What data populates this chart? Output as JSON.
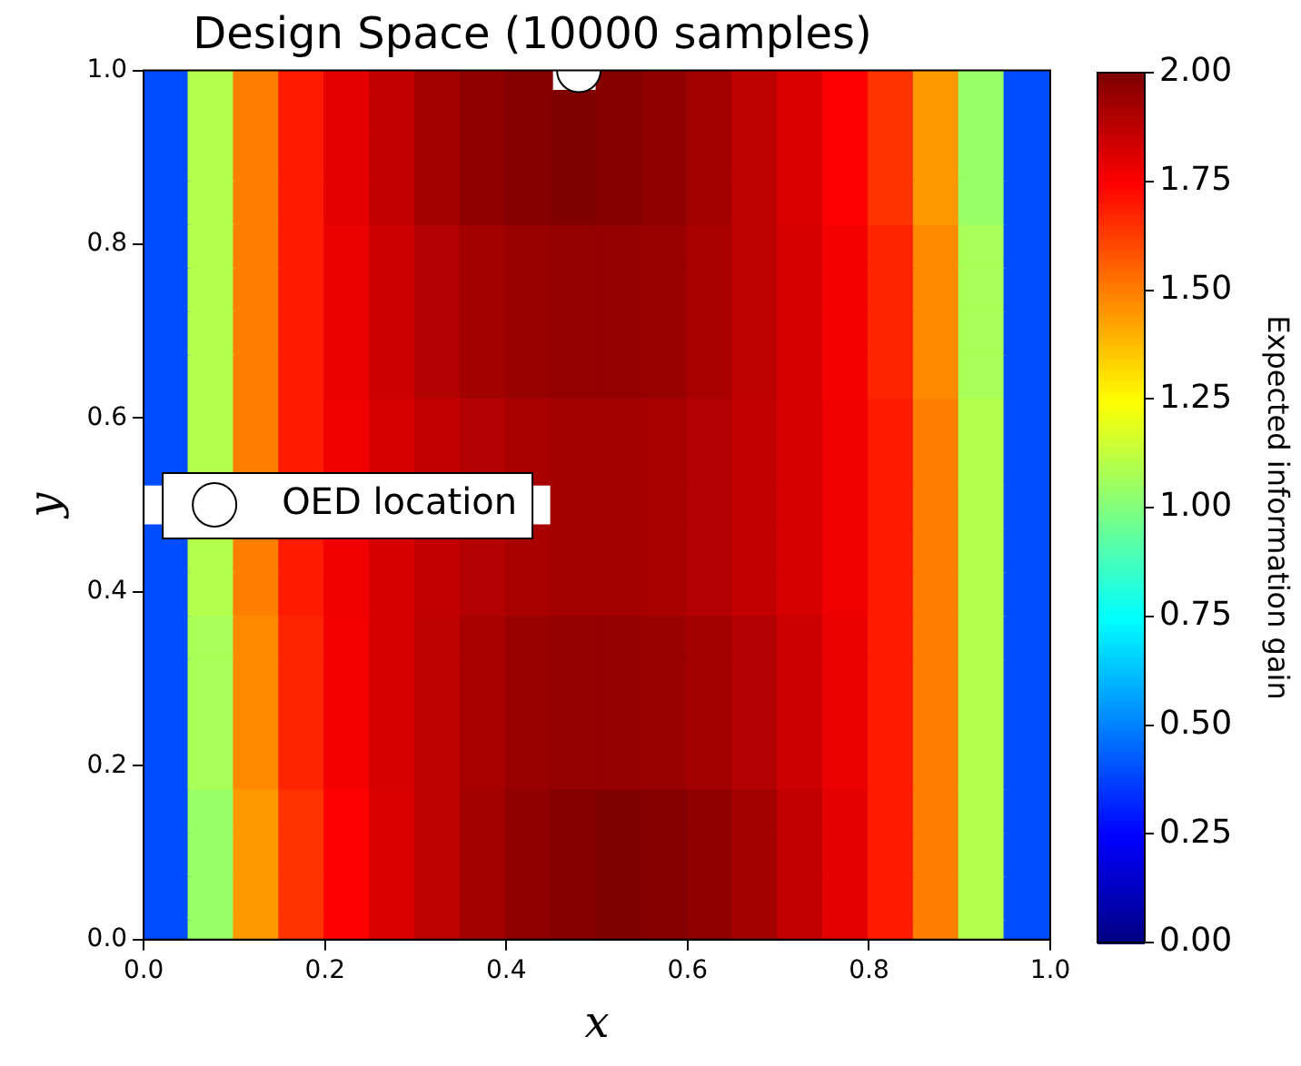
{
  "chart_data": {
    "type": "scatter",
    "title": "Design Space (10000 samples)",
    "xlabel": "x",
    "ylabel": "y",
    "clabel": "Expected information gain",
    "marker": "square",
    "clim": [
      0,
      2
    ],
    "cticks": [
      {
        "value": 0,
        "label": "0.00"
      },
      {
        "value": 0.25,
        "label": "0.25"
      },
      {
        "value": 0.5,
        "label": "0.50"
      },
      {
        "value": 0.75,
        "label": "0.75"
      },
      {
        "value": 1,
        "label": "1.00"
      },
      {
        "value": 1.25,
        "label": "1.25"
      },
      {
        "value": 1.5,
        "label": "1.50"
      },
      {
        "value": 1.75,
        "label": "1.75"
      },
      {
        "value": 2,
        "label": "2.00"
      }
    ],
    "xlim": [
      0,
      1
    ],
    "ylim": [
      0,
      1
    ],
    "xticks": [
      {
        "value": 0,
        "label": "0.0"
      },
      {
        "value": 0.2,
        "label": "0.2"
      },
      {
        "value": 0.4,
        "label": "0.4"
      },
      {
        "value": 0.6,
        "label": "0.6"
      },
      {
        "value": 0.8,
        "label": "0.8"
      },
      {
        "value": 1,
        "label": "1.0"
      }
    ],
    "yticks": [
      {
        "value": 0,
        "label": "0.0"
      },
      {
        "value": 0.2,
        "label": "0.2"
      },
      {
        "value": 0.4,
        "label": "0.4"
      },
      {
        "value": 0.6,
        "label": "0.6"
      },
      {
        "value": 0.8,
        "label": "0.8"
      },
      {
        "value": 1,
        "label": "1.0"
      }
    ],
    "series": [
      {
        "x": [
          0.025,
          0.075,
          0.125,
          0.175,
          0.225,
          0.275,
          0.325,
          0.375,
          0.425,
          0.525,
          0.575,
          0.625,
          0.675,
          0.725,
          0.775,
          0.825,
          0.875,
          0.925,
          0.975
        ],
        "values": [
          1,
          1,
          1,
          1,
          1,
          1,
          1,
          1,
          1,
          1,
          1,
          1,
          1,
          1,
          1,
          1,
          1,
          1,
          1
        ],
        "cvalues": [
          0.4,
          1.1,
          1.5,
          1.7,
          1.8,
          1.87,
          1.93,
          1.97,
          1.99,
          1.99,
          1.97,
          1.93,
          1.88,
          1.82,
          1.75,
          1.65,
          1.45,
          1.05,
          0.4
        ],
        "colors": [
          "#004dff",
          "#b3ff4d",
          "#ff8000",
          "#ff1a00",
          "#e60000",
          "#c20000",
          "#a30000",
          "#8f0000",
          "#850000",
          "#850000",
          "#8f0000",
          "#a30000",
          "#bd0000",
          "#db0000",
          "#ff0000",
          "#ff3300",
          "#ff9900",
          "#99ff66",
          "#004dff"
        ]
      },
      {
        "x": [
          0.025,
          0.075,
          0.125,
          0.175,
          0.225,
          0.275,
          0.325,
          0.375,
          0.425,
          0.475,
          0.525,
          0.575,
          0.625,
          0.675,
          0.725,
          0.775,
          0.825,
          0.875,
          0.925,
          0.975
        ],
        "values": [
          0.95,
          0.95,
          0.95,
          0.95,
          0.95,
          0.95,
          0.95,
          0.95,
          0.95,
          0.95,
          0.95,
          0.95,
          0.95,
          0.95,
          0.95,
          0.95,
          0.95,
          0.95,
          0.95,
          0.95
        ],
        "cvalues": [
          0.4,
          1.1,
          1.5,
          1.7,
          1.8,
          1.87,
          1.93,
          1.97,
          1.99,
          2.0,
          1.99,
          1.97,
          1.93,
          1.88,
          1.82,
          1.75,
          1.65,
          1.45,
          1.05,
          0.4
        ],
        "colors": [
          "#004dff",
          "#b3ff4d",
          "#ff8000",
          "#ff1a00",
          "#e60000",
          "#c20000",
          "#a30000",
          "#8f0000",
          "#850000",
          "#800000",
          "#850000",
          "#8f0000",
          "#a30000",
          "#bd0000",
          "#db0000",
          "#ff0000",
          "#ff3300",
          "#ff9900",
          "#99ff66",
          "#004dff"
        ]
      },
      {
        "x": [
          0.025,
          0.075,
          0.125,
          0.175,
          0.225,
          0.275,
          0.325,
          0.375,
          0.425,
          0.475,
          0.525,
          0.575,
          0.625,
          0.675,
          0.725,
          0.775,
          0.825,
          0.875,
          0.925,
          0.975
        ],
        "values": [
          0.9,
          0.9,
          0.9,
          0.9,
          0.9,
          0.9,
          0.9,
          0.9,
          0.9,
          0.9,
          0.9,
          0.9,
          0.9,
          0.9,
          0.9,
          0.9,
          0.9,
          0.9,
          0.9,
          0.9
        ],
        "cvalues": [
          0.4,
          1.1,
          1.5,
          1.7,
          1.8,
          1.87,
          1.93,
          1.97,
          1.99,
          2.0,
          1.99,
          1.97,
          1.93,
          1.88,
          1.82,
          1.75,
          1.65,
          1.45,
          1.05,
          0.4
        ],
        "colors": [
          "#004dff",
          "#b3ff4d",
          "#ff8000",
          "#ff1a00",
          "#e60000",
          "#c20000",
          "#a30000",
          "#8f0000",
          "#850000",
          "#800000",
          "#850000",
          "#8f0000",
          "#a30000",
          "#bd0000",
          "#db0000",
          "#ff0000",
          "#ff3300",
          "#ff9900",
          "#99ff66",
          "#004dff"
        ]
      },
      {
        "x": [
          0.025,
          0.075,
          0.125,
          0.175,
          0.225,
          0.275,
          0.325,
          0.375,
          0.425,
          0.475,
          0.525,
          0.575,
          0.625,
          0.675,
          0.725,
          0.775,
          0.825,
          0.875,
          0.925,
          0.975
        ],
        "values": [
          0.85,
          0.85,
          0.85,
          0.85,
          0.85,
          0.85,
          0.85,
          0.85,
          0.85,
          0.85,
          0.85,
          0.85,
          0.85,
          0.85,
          0.85,
          0.85,
          0.85,
          0.85,
          0.85,
          0.85
        ],
        "cvalues": [
          0.4,
          1.1,
          1.5,
          1.7,
          1.8,
          1.87,
          1.93,
          1.97,
          1.99,
          2.0,
          1.99,
          1.97,
          1.93,
          1.88,
          1.82,
          1.75,
          1.65,
          1.45,
          1.05,
          0.4
        ],
        "colors": [
          "#004dff",
          "#b3ff4d",
          "#ff8000",
          "#ff1a00",
          "#e60000",
          "#c20000",
          "#a30000",
          "#8f0000",
          "#850000",
          "#800000",
          "#850000",
          "#8f0000",
          "#a30000",
          "#bd0000",
          "#db0000",
          "#ff0000",
          "#ff3300",
          "#ff9900",
          "#99ff66",
          "#004dff"
        ]
      },
      {
        "x": [
          0.025,
          0.075,
          0.125,
          0.175,
          0.225,
          0.275,
          0.325,
          0.375,
          0.425,
          0.475,
          0.525,
          0.575,
          0.625,
          0.675,
          0.725,
          0.775,
          0.825,
          0.875,
          0.925,
          0.975
        ],
        "values": [
          0.8,
          0.8,
          0.8,
          0.8,
          0.8,
          0.8,
          0.8,
          0.8,
          0.8,
          0.8,
          0.8,
          0.8,
          0.8,
          0.8,
          0.8,
          0.8,
          0.8,
          0.8,
          0.8,
          0.8
        ],
        "cvalues": [
          0.4,
          1.1,
          1.5,
          1.7,
          1.79,
          1.85,
          1.9,
          1.93,
          1.95,
          1.96,
          1.96,
          1.95,
          1.92,
          1.88,
          1.83,
          1.77,
          1.68,
          1.48,
          1.08,
          0.4
        ],
        "colors": [
          "#004dff",
          "#b3ff4d",
          "#ff8000",
          "#ff1a00",
          "#eb0000",
          "#cc0000",
          "#b30000",
          "#a30000",
          "#990000",
          "#940000",
          "#940000",
          "#990000",
          "#a80000",
          "#bd0000",
          "#d60000",
          "#f50000",
          "#ff2400",
          "#ff8a00",
          "#a8ff57",
          "#004dff"
        ]
      },
      {
        "x": [
          0.025,
          0.075,
          0.125,
          0.175,
          0.225,
          0.275,
          0.325,
          0.375,
          0.425,
          0.475,
          0.525,
          0.575,
          0.625,
          0.675,
          0.725,
          0.775,
          0.825,
          0.875,
          0.925,
          0.975
        ],
        "values": [
          0.75,
          0.75,
          0.75,
          0.75,
          0.75,
          0.75,
          0.75,
          0.75,
          0.75,
          0.75,
          0.75,
          0.75,
          0.75,
          0.75,
          0.75,
          0.75,
          0.75,
          0.75,
          0.75,
          0.75
        ],
        "cvalues": [
          0.4,
          1.1,
          1.5,
          1.7,
          1.79,
          1.85,
          1.9,
          1.93,
          1.95,
          1.96,
          1.96,
          1.95,
          1.92,
          1.88,
          1.83,
          1.77,
          1.68,
          1.48,
          1.08,
          0.4
        ],
        "colors": [
          "#004dff",
          "#b3ff4d",
          "#ff8000",
          "#ff1a00",
          "#eb0000",
          "#cc0000",
          "#b30000",
          "#a30000",
          "#990000",
          "#940000",
          "#940000",
          "#990000",
          "#a80000",
          "#bd0000",
          "#d60000",
          "#f50000",
          "#ff2400",
          "#ff8a00",
          "#a8ff57",
          "#004dff"
        ]
      },
      {
        "x": [
          0.025,
          0.075,
          0.125,
          0.175,
          0.225,
          0.275,
          0.325,
          0.375,
          0.425,
          0.475,
          0.525,
          0.575,
          0.625,
          0.675,
          0.725,
          0.775,
          0.825,
          0.875,
          0.925,
          0.975
        ],
        "values": [
          0.7,
          0.7,
          0.7,
          0.7,
          0.7,
          0.7,
          0.7,
          0.7,
          0.7,
          0.7,
          0.7,
          0.7,
          0.7,
          0.7,
          0.7,
          0.7,
          0.7,
          0.7,
          0.7,
          0.7
        ],
        "cvalues": [
          0.4,
          1.1,
          1.5,
          1.7,
          1.79,
          1.85,
          1.9,
          1.93,
          1.95,
          1.96,
          1.96,
          1.95,
          1.92,
          1.88,
          1.83,
          1.77,
          1.68,
          1.48,
          1.08,
          0.4
        ],
        "colors": [
          "#004dff",
          "#b3ff4d",
          "#ff8000",
          "#ff1a00",
          "#eb0000",
          "#cc0000",
          "#b30000",
          "#a30000",
          "#990000",
          "#940000",
          "#940000",
          "#990000",
          "#a80000",
          "#bd0000",
          "#d60000",
          "#f50000",
          "#ff2400",
          "#ff8a00",
          "#a8ff57",
          "#004dff"
        ]
      },
      {
        "x": [
          0.025,
          0.075,
          0.125,
          0.175,
          0.225,
          0.275,
          0.325,
          0.375,
          0.425,
          0.475,
          0.525,
          0.575,
          0.625,
          0.675,
          0.725,
          0.775,
          0.825,
          0.875,
          0.925,
          0.975
        ],
        "values": [
          0.65,
          0.65,
          0.65,
          0.65,
          0.65,
          0.65,
          0.65,
          0.65,
          0.65,
          0.65,
          0.65,
          0.65,
          0.65,
          0.65,
          0.65,
          0.65,
          0.65,
          0.65,
          0.65,
          0.65
        ],
        "cvalues": [
          0.4,
          1.1,
          1.5,
          1.7,
          1.79,
          1.85,
          1.9,
          1.93,
          1.95,
          1.96,
          1.96,
          1.95,
          1.92,
          1.88,
          1.83,
          1.77,
          1.68,
          1.48,
          1.08,
          0.4
        ],
        "colors": [
          "#004dff",
          "#b3ff4d",
          "#ff8000",
          "#ff1a00",
          "#eb0000",
          "#cc0000",
          "#b30000",
          "#a30000",
          "#990000",
          "#940000",
          "#940000",
          "#990000",
          "#a80000",
          "#bd0000",
          "#d60000",
          "#f50000",
          "#ff2400",
          "#ff8a00",
          "#a8ff57",
          "#004dff"
        ]
      },
      {
        "x": [
          0.025,
          0.075,
          0.125,
          0.175,
          0.225,
          0.275,
          0.325,
          0.375,
          0.425,
          0.475,
          0.525,
          0.575,
          0.625,
          0.675,
          0.725,
          0.775,
          0.825,
          0.875,
          0.925,
          0.975
        ],
        "values": [
          0.6,
          0.6,
          0.6,
          0.6,
          0.6,
          0.6,
          0.6,
          0.6,
          0.6,
          0.6,
          0.6,
          0.6,
          0.6,
          0.6,
          0.6,
          0.6,
          0.6,
          0.6,
          0.6,
          0.6
        ],
        "cvalues": [
          0.4,
          1.1,
          1.5,
          1.7,
          1.78,
          1.83,
          1.87,
          1.9,
          1.92,
          1.93,
          1.93,
          1.92,
          1.9,
          1.87,
          1.83,
          1.78,
          1.7,
          1.5,
          1.1,
          0.4
        ],
        "colors": [
          "#004dff",
          "#b3ff4d",
          "#ff8000",
          "#ff1a00",
          "#f00000",
          "#d60000",
          "#c20000",
          "#b30000",
          "#a80000",
          "#a30000",
          "#a30000",
          "#a80000",
          "#b30000",
          "#c20000",
          "#d60000",
          "#f00000",
          "#ff1a00",
          "#ff8000",
          "#b3ff4d",
          "#004dff"
        ]
      },
      {
        "x": [
          0.025,
          0.075,
          0.125,
          0.175,
          0.225,
          0.275,
          0.325,
          0.375,
          0.425,
          0.475,
          0.525,
          0.575,
          0.625,
          0.675,
          0.725,
          0.775,
          0.825,
          0.875,
          0.925,
          0.975
        ],
        "values": [
          0.55,
          0.55,
          0.55,
          0.55,
          0.55,
          0.55,
          0.55,
          0.55,
          0.55,
          0.55,
          0.55,
          0.55,
          0.55,
          0.55,
          0.55,
          0.55,
          0.55,
          0.55,
          0.55,
          0.55
        ],
        "cvalues": [
          0.4,
          1.1,
          1.5,
          1.7,
          1.78,
          1.83,
          1.87,
          1.9,
          1.92,
          1.93,
          1.93,
          1.92,
          1.9,
          1.87,
          1.83,
          1.78,
          1.7,
          1.5,
          1.1,
          0.4
        ],
        "colors": [
          "#004dff",
          "#b3ff4d",
          "#ff8000",
          "#ff1a00",
          "#f00000",
          "#d60000",
          "#c20000",
          "#b30000",
          "#a80000",
          "#a30000",
          "#a30000",
          "#a80000",
          "#b30000",
          "#c20000",
          "#d60000",
          "#f00000",
          "#ff1a00",
          "#ff8000",
          "#b3ff4d",
          "#004dff"
        ]
      },
      {
        "x": [
          0.475,
          0.525,
          0.575,
          0.625,
          0.675,
          0.725,
          0.775,
          0.825,
          0.875,
          0.925,
          0.975
        ],
        "values": [
          0.5,
          0.5,
          0.5,
          0.5,
          0.5,
          0.5,
          0.5,
          0.5,
          0.5,
          0.5,
          0.5
        ],
        "cvalues": [
          1.93,
          1.93,
          1.92,
          1.9,
          1.87,
          1.83,
          1.78,
          1.7,
          1.5,
          1.1,
          0.4
        ],
        "colors": [
          "#a30000",
          "#a30000",
          "#a80000",
          "#b30000",
          "#c20000",
          "#d60000",
          "#f00000",
          "#ff1a00",
          "#ff8000",
          "#b3ff4d",
          "#004dff"
        ]
      },
      {
        "x": [
          0.025,
          0.075,
          0.125,
          0.175,
          0.225,
          0.275,
          0.325,
          0.375,
          0.425,
          0.475,
          0.525,
          0.575,
          0.625,
          0.675,
          0.725,
          0.775,
          0.825,
          0.875,
          0.925,
          0.975
        ],
        "values": [
          0.45,
          0.45,
          0.45,
          0.45,
          0.45,
          0.45,
          0.45,
          0.45,
          0.45,
          0.45,
          0.45,
          0.45,
          0.45,
          0.45,
          0.45,
          0.45,
          0.45,
          0.45,
          0.45,
          0.45
        ],
        "cvalues": [
          0.4,
          1.1,
          1.5,
          1.7,
          1.78,
          1.83,
          1.87,
          1.9,
          1.92,
          1.93,
          1.93,
          1.92,
          1.9,
          1.87,
          1.83,
          1.78,
          1.7,
          1.5,
          1.1,
          0.4
        ],
        "colors": [
          "#004dff",
          "#b3ff4d",
          "#ff8000",
          "#ff1a00",
          "#f00000",
          "#d60000",
          "#c20000",
          "#b30000",
          "#a80000",
          "#a30000",
          "#a30000",
          "#a80000",
          "#b30000",
          "#c20000",
          "#d60000",
          "#f00000",
          "#ff1a00",
          "#ff8000",
          "#b3ff4d",
          "#004dff"
        ]
      },
      {
        "x": [
          0.025,
          0.075,
          0.125,
          0.175,
          0.225,
          0.275,
          0.325,
          0.375,
          0.425,
          0.475,
          0.525,
          0.575,
          0.625,
          0.675,
          0.725,
          0.775,
          0.825,
          0.875,
          0.925,
          0.975
        ],
        "values": [
          0.4,
          0.4,
          0.4,
          0.4,
          0.4,
          0.4,
          0.4,
          0.4,
          0.4,
          0.4,
          0.4,
          0.4,
          0.4,
          0.4,
          0.4,
          0.4,
          0.4,
          0.4,
          0.4,
          0.4
        ],
        "cvalues": [
          0.4,
          1.1,
          1.5,
          1.7,
          1.78,
          1.83,
          1.87,
          1.9,
          1.92,
          1.93,
          1.93,
          1.92,
          1.9,
          1.87,
          1.83,
          1.78,
          1.7,
          1.5,
          1.1,
          0.4
        ],
        "colors": [
          "#004dff",
          "#b3ff4d",
          "#ff8000",
          "#ff1a00",
          "#f00000",
          "#d60000",
          "#c20000",
          "#b30000",
          "#a80000",
          "#a30000",
          "#a30000",
          "#a80000",
          "#b30000",
          "#c20000",
          "#d60000",
          "#f00000",
          "#ff1a00",
          "#ff8000",
          "#b3ff4d",
          "#004dff"
        ]
      },
      {
        "x": [
          0.025,
          0.075,
          0.125,
          0.175,
          0.225,
          0.275,
          0.325,
          0.375,
          0.425,
          0.475,
          0.525,
          0.575,
          0.625,
          0.675,
          0.725,
          0.775,
          0.825,
          0.875,
          0.925,
          0.975
        ],
        "values": [
          0.35,
          0.35,
          0.35,
          0.35,
          0.35,
          0.35,
          0.35,
          0.35,
          0.35,
          0.35,
          0.35,
          0.35,
          0.35,
          0.35,
          0.35,
          0.35,
          0.35,
          0.35,
          0.35,
          0.35
        ],
        "cvalues": [
          0.4,
          1.08,
          1.48,
          1.68,
          1.77,
          1.83,
          1.88,
          1.92,
          1.95,
          1.96,
          1.96,
          1.95,
          1.93,
          1.9,
          1.85,
          1.79,
          1.7,
          1.5,
          1.1,
          0.4
        ],
        "colors": [
          "#004dff",
          "#a8ff57",
          "#ff8a00",
          "#ff2400",
          "#f50000",
          "#d60000",
          "#bd0000",
          "#a80000",
          "#990000",
          "#940000",
          "#940000",
          "#990000",
          "#a30000",
          "#b30000",
          "#cc0000",
          "#eb0000",
          "#ff1a00",
          "#ff8000",
          "#b3ff4d",
          "#004dff"
        ]
      },
      {
        "x": [
          0.025,
          0.075,
          0.125,
          0.175,
          0.225,
          0.275,
          0.325,
          0.375,
          0.425,
          0.475,
          0.525,
          0.575,
          0.625,
          0.675,
          0.725,
          0.775,
          0.825,
          0.875,
          0.925,
          0.975
        ],
        "values": [
          0.3,
          0.3,
          0.3,
          0.3,
          0.3,
          0.3,
          0.3,
          0.3,
          0.3,
          0.3,
          0.3,
          0.3,
          0.3,
          0.3,
          0.3,
          0.3,
          0.3,
          0.3,
          0.3,
          0.3
        ],
        "cvalues": [
          0.4,
          1.08,
          1.48,
          1.68,
          1.77,
          1.83,
          1.88,
          1.92,
          1.95,
          1.96,
          1.96,
          1.95,
          1.93,
          1.9,
          1.85,
          1.79,
          1.7,
          1.5,
          1.1,
          0.4
        ],
        "colors": [
          "#004dff",
          "#a8ff57",
          "#ff8a00",
          "#ff2400",
          "#f50000",
          "#d60000",
          "#bd0000",
          "#a80000",
          "#990000",
          "#940000",
          "#940000",
          "#990000",
          "#a30000",
          "#b30000",
          "#cc0000",
          "#eb0000",
          "#ff1a00",
          "#ff8000",
          "#b3ff4d",
          "#004dff"
        ]
      },
      {
        "x": [
          0.025,
          0.075,
          0.125,
          0.175,
          0.225,
          0.275,
          0.325,
          0.375,
          0.425,
          0.475,
          0.525,
          0.575,
          0.625,
          0.675,
          0.725,
          0.775,
          0.825,
          0.875,
          0.925,
          0.975
        ],
        "values": [
          0.25,
          0.25,
          0.25,
          0.25,
          0.25,
          0.25,
          0.25,
          0.25,
          0.25,
          0.25,
          0.25,
          0.25,
          0.25,
          0.25,
          0.25,
          0.25,
          0.25,
          0.25,
          0.25,
          0.25
        ],
        "cvalues": [
          0.4,
          1.08,
          1.48,
          1.68,
          1.77,
          1.83,
          1.88,
          1.92,
          1.95,
          1.96,
          1.96,
          1.95,
          1.93,
          1.9,
          1.85,
          1.79,
          1.7,
          1.5,
          1.1,
          0.4
        ],
        "colors": [
          "#004dff",
          "#a8ff57",
          "#ff8a00",
          "#ff2400",
          "#f50000",
          "#d60000",
          "#bd0000",
          "#a80000",
          "#990000",
          "#940000",
          "#940000",
          "#990000",
          "#a30000",
          "#b30000",
          "#cc0000",
          "#eb0000",
          "#ff1a00",
          "#ff8000",
          "#b3ff4d",
          "#004dff"
        ]
      },
      {
        "x": [
          0.025,
          0.075,
          0.125,
          0.175,
          0.225,
          0.275,
          0.325,
          0.375,
          0.425,
          0.475,
          0.525,
          0.575,
          0.625,
          0.675,
          0.725,
          0.775,
          0.825,
          0.875,
          0.925,
          0.975
        ],
        "values": [
          0.2,
          0.2,
          0.2,
          0.2,
          0.2,
          0.2,
          0.2,
          0.2,
          0.2,
          0.2,
          0.2,
          0.2,
          0.2,
          0.2,
          0.2,
          0.2,
          0.2,
          0.2,
          0.2,
          0.2
        ],
        "cvalues": [
          0.4,
          1.08,
          1.48,
          1.68,
          1.77,
          1.83,
          1.88,
          1.92,
          1.95,
          1.96,
          1.96,
          1.95,
          1.93,
          1.9,
          1.85,
          1.79,
          1.7,
          1.5,
          1.1,
          0.4
        ],
        "colors": [
          "#004dff",
          "#a8ff57",
          "#ff8a00",
          "#ff2400",
          "#f50000",
          "#d60000",
          "#bd0000",
          "#a80000",
          "#990000",
          "#940000",
          "#940000",
          "#990000",
          "#a30000",
          "#b30000",
          "#cc0000",
          "#eb0000",
          "#ff1a00",
          "#ff8000",
          "#b3ff4d",
          "#004dff"
        ]
      },
      {
        "x": [
          0.025,
          0.075,
          0.125,
          0.175,
          0.225,
          0.275,
          0.325,
          0.375,
          0.425,
          0.475,
          0.525,
          0.575,
          0.625,
          0.675,
          0.725,
          0.775,
          0.825,
          0.875,
          0.925,
          0.975
        ],
        "values": [
          0.15,
          0.15,
          0.15,
          0.15,
          0.15,
          0.15,
          0.15,
          0.15,
          0.15,
          0.15,
          0.15,
          0.15,
          0.15,
          0.15,
          0.15,
          0.15,
          0.15,
          0.15,
          0.15,
          0.15
        ],
        "cvalues": [
          0.4,
          1.05,
          1.45,
          1.65,
          1.75,
          1.82,
          1.88,
          1.93,
          1.97,
          1.99,
          2.0,
          1.99,
          1.97,
          1.93,
          1.87,
          1.8,
          1.7,
          1.5,
          1.1,
          0.4
        ],
        "colors": [
          "#004dff",
          "#99ff66",
          "#ff9900",
          "#ff3300",
          "#ff0000",
          "#db0000",
          "#bd0000",
          "#a30000",
          "#8f0000",
          "#850000",
          "#800000",
          "#850000",
          "#8f0000",
          "#a30000",
          "#c20000",
          "#e60000",
          "#ff1a00",
          "#ff8000",
          "#b3ff4d",
          "#004dff"
        ]
      },
      {
        "x": [
          0.025,
          0.075,
          0.125,
          0.175,
          0.225,
          0.275,
          0.325,
          0.375,
          0.425,
          0.475,
          0.525,
          0.575,
          0.625,
          0.675,
          0.725,
          0.775,
          0.825,
          0.875,
          0.925,
          0.975
        ],
        "values": [
          0.1,
          0.1,
          0.1,
          0.1,
          0.1,
          0.1,
          0.1,
          0.1,
          0.1,
          0.1,
          0.1,
          0.1,
          0.1,
          0.1,
          0.1,
          0.1,
          0.1,
          0.1,
          0.1,
          0.1
        ],
        "cvalues": [
          0.4,
          1.05,
          1.45,
          1.65,
          1.75,
          1.82,
          1.88,
          1.93,
          1.97,
          1.99,
          2.0,
          1.99,
          1.97,
          1.93,
          1.87,
          1.8,
          1.7,
          1.5,
          1.1,
          0.4
        ],
        "colors": [
          "#004dff",
          "#99ff66",
          "#ff9900",
          "#ff3300",
          "#ff0000",
          "#db0000",
          "#bd0000",
          "#a30000",
          "#8f0000",
          "#850000",
          "#800000",
          "#850000",
          "#8f0000",
          "#a30000",
          "#c20000",
          "#e60000",
          "#ff1a00",
          "#ff8000",
          "#b3ff4d",
          "#004dff"
        ]
      },
      {
        "x": [
          0.025,
          0.075,
          0.125,
          0.175,
          0.225,
          0.275,
          0.325,
          0.375,
          0.425,
          0.475,
          0.525,
          0.575,
          0.625,
          0.675,
          0.725,
          0.775,
          0.825,
          0.875,
          0.925,
          0.975
        ],
        "values": [
          0.05,
          0.05,
          0.05,
          0.05,
          0.05,
          0.05,
          0.05,
          0.05,
          0.05,
          0.05,
          0.05,
          0.05,
          0.05,
          0.05,
          0.05,
          0.05,
          0.05,
          0.05,
          0.05,
          0.05
        ],
        "cvalues": [
          0.4,
          1.05,
          1.45,
          1.65,
          1.75,
          1.82,
          1.88,
          1.93,
          1.97,
          1.99,
          2.0,
          1.99,
          1.97,
          1.93,
          1.87,
          1.8,
          1.7,
          1.5,
          1.1,
          0.4
        ],
        "colors": [
          "#004dff",
          "#99ff66",
          "#ff9900",
          "#ff3300",
          "#ff0000",
          "#db0000",
          "#bd0000",
          "#a30000",
          "#8f0000",
          "#850000",
          "#800000",
          "#850000",
          "#8f0000",
          "#a30000",
          "#c20000",
          "#e60000",
          "#ff1a00",
          "#ff8000",
          "#b3ff4d",
          "#004dff"
        ]
      },
      {
        "x": [
          0.025,
          0.075,
          0.125,
          0.175,
          0.225,
          0.275,
          0.325,
          0.375,
          0.425,
          0.475,
          0.525,
          0.575,
          0.625,
          0.675,
          0.725,
          0.775,
          0.825,
          0.875,
          0.925,
          0.975
        ],
        "values": [
          0,
          0,
          0,
          0,
          0,
          0,
          0,
          0,
          0,
          0,
          0,
          0,
          0,
          0,
          0,
          0,
          0,
          0,
          0,
          0
        ],
        "cvalues": [
          0.4,
          1.05,
          1.45,
          1.65,
          1.75,
          1.82,
          1.88,
          1.93,
          1.97,
          1.99,
          2.0,
          1.99,
          1.97,
          1.93,
          1.87,
          1.8,
          1.7,
          1.5,
          1.1,
          0.4
        ],
        "colors": [
          "#004dff",
          "#99ff66",
          "#ff9900",
          "#ff3300",
          "#ff0000",
          "#db0000",
          "#bd0000",
          "#a30000",
          "#8f0000",
          "#850000",
          "#800000",
          "#850000",
          "#8f0000",
          "#a30000",
          "#c20000",
          "#e60000",
          "#ff1a00",
          "#ff8000",
          "#b3ff4d",
          "#004dff"
        ]
      },
      {
        "type": "scatter",
        "name": "OED location",
        "color": "#ffffff",
        "x": [
          0.48
        ],
        "values": [
          1.0
        ],
        "marker": "circle"
      }
    ],
    "legend": "center left"
  }
}
